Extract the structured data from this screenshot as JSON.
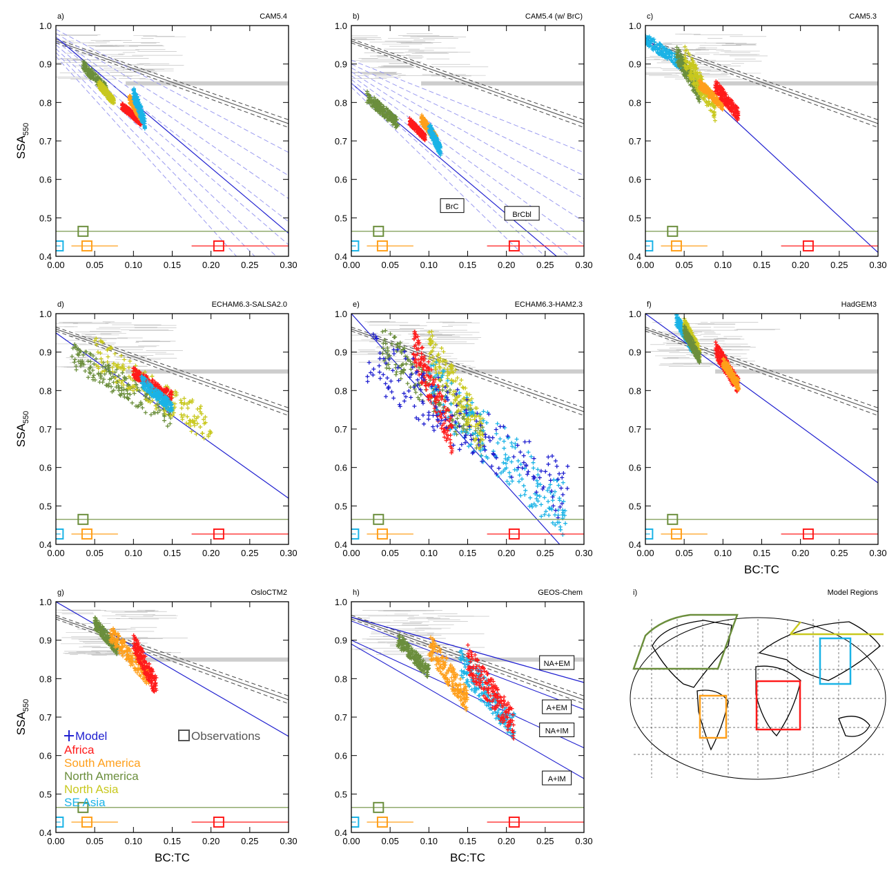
{
  "figure": {
    "x_axis_label": "BC:TC",
    "y_axis_label_main": "SSA",
    "y_axis_label_sub": "550",
    "x_ticks": [
      "0.00",
      "0.05",
      "0.10",
      "0.15",
      "0.20",
      "0.25",
      "0.30"
    ],
    "y_ticks": [
      "0.4",
      "0.5",
      "0.6",
      "0.7",
      "0.8",
      "0.9",
      "1.0"
    ],
    "legend": {
      "model": "Model",
      "observations": "Observations",
      "regions": [
        "Africa",
        "South America",
        "North America",
        "North Asia",
        "SE Asia"
      ]
    },
    "colors": {
      "Africa": "#ff1a1a",
      "South America": "#ff9f1a",
      "North America": "#6b8e3c",
      "North Asia": "#c8c81e",
      "SE Asia": "#1ab3e6",
      "model_line": "#2020d0",
      "observations": "#b8b8b8"
    }
  },
  "chart_data": [
    {
      "type": "scatter",
      "panel": "a)",
      "title": "CAM5.4",
      "xlim": [
        0,
        0.3
      ],
      "ylim": [
        0.4,
        1.0
      ],
      "xlabel": "",
      "ylabel": "SSA550",
      "clusters": [
        {
          "region": "North America",
          "x": [
            0.035,
            0.065
          ],
          "y": [
            0.82,
            0.91
          ]
        },
        {
          "region": "North Asia",
          "x": [
            0.055,
            0.075
          ],
          "y": [
            0.79,
            0.86
          ]
        },
        {
          "region": "Africa",
          "x": [
            0.085,
            0.11
          ],
          "y": [
            0.74,
            0.8
          ]
        },
        {
          "region": "South America",
          "x": [
            0.095,
            0.11
          ],
          "y": [
            0.75,
            0.82
          ]
        },
        {
          "region": "SE Asia",
          "x": [
            0.1,
            0.115
          ],
          "y": [
            0.73,
            0.84
          ]
        }
      ],
      "model_fit": [
        [
          0,
          0.97
        ],
        [
          0.3,
          0.46
        ]
      ],
      "annotations": []
    },
    {
      "type": "scatter",
      "panel": "b)",
      "title": "CAM5.4 (w/ BrC)",
      "xlim": [
        0,
        0.3
      ],
      "ylim": [
        0.4,
        1.0
      ],
      "xlabel": "",
      "ylabel": "",
      "clusters": [
        {
          "region": "North America",
          "x": [
            0.02,
            0.06
          ],
          "y": [
            0.73,
            0.83
          ]
        },
        {
          "region": "Africa",
          "x": [
            0.075,
            0.095
          ],
          "y": [
            0.7,
            0.76
          ]
        },
        {
          "region": "South America",
          "x": [
            0.09,
            0.11
          ],
          "y": [
            0.69,
            0.77
          ]
        },
        {
          "region": "SE Asia",
          "x": [
            0.1,
            0.115
          ],
          "y": [
            0.66,
            0.75
          ]
        }
      ],
      "model_fit": [
        [
          0,
          0.85
        ],
        [
          0.3,
          0.34
        ]
      ],
      "annotations": [
        "BrC",
        "BrCbl"
      ]
    },
    {
      "type": "scatter",
      "panel": "c)",
      "title": "CAM5.3",
      "xlim": [
        0,
        0.3
      ],
      "ylim": [
        0.4,
        1.0
      ],
      "xlabel": "",
      "ylabel": "",
      "clusters": [
        {
          "region": "SE Asia",
          "x": [
            0.0,
            0.05
          ],
          "y": [
            0.88,
            0.98
          ]
        },
        {
          "region": "North America",
          "x": [
            0.04,
            0.07
          ],
          "y": [
            0.8,
            0.95
          ]
        },
        {
          "region": "North Asia",
          "x": [
            0.05,
            0.09
          ],
          "y": [
            0.75,
            0.95
          ]
        },
        {
          "region": "South America",
          "x": [
            0.07,
            0.1
          ],
          "y": [
            0.78,
            0.86
          ]
        },
        {
          "region": "Africa",
          "x": [
            0.09,
            0.12
          ],
          "y": [
            0.75,
            0.86
          ]
        }
      ],
      "model_fit": [
        [
          0,
          0.97
        ],
        [
          0.3,
          0.41
        ]
      ],
      "annotations": []
    },
    {
      "type": "scatter",
      "panel": "d)",
      "title": "ECHAM6.3-SALSA2.0",
      "xlim": [
        0,
        0.3
      ],
      "ylim": [
        0.4,
        1.0
      ],
      "xlabel": "",
      "ylabel": "SSA550",
      "clusters": [
        {
          "region": "North America",
          "x": [
            0.02,
            0.15
          ],
          "y": [
            0.7,
            0.93
          ]
        },
        {
          "region": "North Asia",
          "x": [
            0.05,
            0.2
          ],
          "y": [
            0.66,
            0.94
          ]
        },
        {
          "region": "Africa",
          "x": [
            0.1,
            0.15
          ],
          "y": [
            0.77,
            0.86
          ]
        },
        {
          "region": "SE Asia",
          "x": [
            0.11,
            0.15
          ],
          "y": [
            0.74,
            0.84
          ]
        }
      ],
      "model_fit": [
        [
          0,
          0.95
        ],
        [
          0.3,
          0.52
        ]
      ],
      "annotations": []
    },
    {
      "type": "scatter",
      "panel": "e)",
      "title": "ECHAM6.3-HAM2.3",
      "xlim": [
        0,
        0.3
      ],
      "ylim": [
        0.4,
        1.0
      ],
      "xlabel": "",
      "ylabel": "",
      "clusters": [
        {
          "region": "North America",
          "x": [
            0.04,
            0.17
          ],
          "y": [
            0.62,
            0.97
          ]
        },
        {
          "region": "Africa",
          "x": [
            0.08,
            0.13
          ],
          "y": [
            0.63,
            0.97
          ]
        },
        {
          "region": "North Asia",
          "x": [
            0.1,
            0.17
          ],
          "y": [
            0.63,
            0.97
          ]
        },
        {
          "region": "SE Asia",
          "x": [
            0.1,
            0.28
          ],
          "y": [
            0.4,
            0.9
          ]
        },
        {
          "region": "Model",
          "x": [
            0.02,
            0.28
          ],
          "y": [
            0.45,
            0.97
          ]
        }
      ],
      "model_fit": [
        [
          0,
          1.0
        ],
        [
          0.3,
          0.33
        ]
      ],
      "annotations": []
    },
    {
      "type": "scatter",
      "panel": "f)",
      "title": "HadGEM3",
      "xlim": [
        0,
        0.3
      ],
      "ylim": [
        0.4,
        1.0
      ],
      "xlabel": "BC:TC",
      "ylabel": "",
      "clusters": [
        {
          "region": "SE Asia",
          "x": [
            0.04,
            0.06
          ],
          "y": [
            0.9,
            1.0
          ]
        },
        {
          "region": "North Asia",
          "x": [
            0.05,
            0.07
          ],
          "y": [
            0.88,
            0.99
          ]
        },
        {
          "region": "North America",
          "x": [
            0.05,
            0.07
          ],
          "y": [
            0.87,
            0.97
          ]
        },
        {
          "region": "Africa",
          "x": [
            0.09,
            0.12
          ],
          "y": [
            0.79,
            0.93
          ]
        },
        {
          "region": "South America",
          "x": [
            0.1,
            0.12
          ],
          "y": [
            0.8,
            0.89
          ]
        }
      ],
      "model_fit": [
        [
          0,
          1.0
        ],
        [
          0.3,
          0.56
        ]
      ],
      "annotations": []
    },
    {
      "type": "scatter",
      "panel": "g)",
      "title": "OsloCTM2",
      "xlim": [
        0,
        0.3
      ],
      "ylim": [
        0.4,
        1.0
      ],
      "xlabel": "BC:TC",
      "ylabel": "SSA550",
      "clusters": [
        {
          "region": "North America",
          "x": [
            0.05,
            0.08
          ],
          "y": [
            0.86,
            0.96
          ]
        },
        {
          "region": "South America",
          "x": [
            0.07,
            0.12
          ],
          "y": [
            0.78,
            0.94
          ]
        },
        {
          "region": "Africa",
          "x": [
            0.1,
            0.13
          ],
          "y": [
            0.75,
            0.92
          ]
        }
      ],
      "model_fit": [
        [
          0,
          1.0
        ],
        [
          0.3,
          0.65
        ]
      ],
      "annotations": []
    },
    {
      "type": "scatter",
      "panel": "h)",
      "title": "GEOS-Chem",
      "xlim": [
        0,
        0.3
      ],
      "ylim": [
        0.4,
        1.0
      ],
      "xlabel": "BC:TC",
      "ylabel": "",
      "clusters": [
        {
          "region": "North America",
          "x": [
            0.06,
            0.1
          ],
          "y": [
            0.8,
            0.92
          ]
        },
        {
          "region": "South America",
          "x": [
            0.1,
            0.15
          ],
          "y": [
            0.71,
            0.92
          ]
        },
        {
          "region": "SE Asia",
          "x": [
            0.14,
            0.21
          ],
          "y": [
            0.64,
            0.88
          ]
        },
        {
          "region": "Africa",
          "x": [
            0.15,
            0.21
          ],
          "y": [
            0.64,
            0.89
          ]
        }
      ],
      "model_fit": [
        [
          0,
          0.96
        ],
        [
          0.3,
          0.79
        ]
      ],
      "annotations": [
        "NA+EM",
        "A+EM",
        "NA+IM",
        "A+IM"
      ]
    }
  ],
  "observation_boxes": [
    {
      "region": "SE Asia",
      "x": 0.003,
      "y": 0.427,
      "x_range": [
        0.0,
        0.006
      ]
    },
    {
      "region": "South America",
      "x": 0.04,
      "y": 0.427,
      "x_range": [
        0.02,
        0.08
      ]
    },
    {
      "region": "North America",
      "x": 0.035,
      "y": 0.465,
      "x_range": [
        0.0,
        0.3
      ]
    },
    {
      "region": "Africa",
      "x": 0.21,
      "y": 0.427,
      "x_range": [
        0.175,
        0.3
      ]
    }
  ],
  "map_panel": {
    "panel": "i)",
    "title": "Model Regions"
  }
}
